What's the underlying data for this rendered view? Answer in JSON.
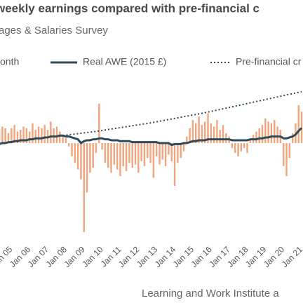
{
  "chart_data": {
    "type": "bar",
    "title": "weekly earnings compared with pre-financial c",
    "subtitle": "ages & Salaries Survey",
    "source": "Learning and Work Institute a",
    "categories": [
      null,
      null,
      null,
      "Jan 05",
      null,
      null,
      null,
      null,
      null,
      "Jan 06",
      null,
      null,
      null,
      null,
      null,
      "Jan 07",
      null,
      null,
      null,
      null,
      null,
      "Jan 08",
      null,
      null,
      null,
      null,
      null,
      "Jan 09",
      null,
      null,
      null,
      null,
      null,
      "Jan 10",
      null,
      null,
      null,
      null,
      null,
      "Jan 11",
      null,
      null,
      null,
      null,
      null,
      "Jan 12",
      null,
      null,
      null,
      null,
      null,
      "Jan 13",
      null,
      null,
      null,
      null,
      null,
      "Jan 14",
      null,
      null,
      null,
      null,
      null,
      "Jan 15",
      null,
      null,
      null,
      null,
      null,
      "Jan 16",
      null,
      null,
      null,
      null,
      null,
      "Jan 17",
      null,
      null,
      null,
      null,
      null,
      "Jan 18",
      null,
      null,
      null,
      null,
      null,
      "Jan 19",
      null,
      null,
      null,
      null,
      null,
      "Jan 20",
      null,
      null,
      null,
      null,
      null,
      "Jan 21",
      null
    ],
    "ylim": [
      -6,
      4
    ],
    "y2lim": [
      390,
      565
    ],
    "series": [
      {
        "name": "onth",
        "type": "bar",
        "color": "#f2a47c",
        "values": [
          0.8,
          1.0,
          0.9,
          0.6,
          0.9,
          1.1,
          0.7,
          0.8,
          1.0,
          0.9,
          0.7,
          1.2,
          0.8,
          1.0,
          0.9,
          1.1,
          0.8,
          1.3,
          0.9,
          1.0,
          0.7,
          0.5,
          0.3,
          -0.2,
          -0.8,
          -1.2,
          -1.6,
          -2.2,
          -5.4,
          -3.0,
          -1.8,
          -1.5,
          -0.6,
          2.4,
          -0.4,
          -1.2,
          -1.5,
          -1.8,
          -1.3,
          -1.6,
          -2.0,
          -1.4,
          -1.7,
          -1.2,
          -1.5,
          -1.3,
          -1.8,
          -1.1,
          -1.4,
          -0.9,
          -1.2,
          -2.1,
          -0.8,
          -1.3,
          -1.0,
          -1.4,
          -0.7,
          -1.1,
          -2.6,
          -1.2,
          -0.9,
          -0.5,
          0.4,
          0.9,
          1.4,
          1.2,
          1.6,
          1.1,
          1.3,
          1.8,
          1.2,
          1.0,
          1.4,
          0.8,
          1.1,
          0.6,
          0.4,
          -0.3,
          -0.6,
          -0.8,
          -0.5,
          -0.3,
          -0.6,
          0.2,
          0.5,
          0.7,
          0.9,
          1.1,
          1.5,
          1.3,
          1.2,
          1.4,
          1.0,
          0.8,
          -1.4,
          -2.0,
          -0.9,
          0.6,
          1.2,
          2.3,
          1.9
        ]
      },
      {
        "name": "Real AWE (2015 £)",
        "type": "line",
        "axis": "y2",
        "color": "#2c4a5a",
        "values": [
          494,
          495,
          495,
          496,
          496,
          497,
          497,
          498,
          498,
          498,
          499,
          499,
          500,
          500,
          500,
          501,
          501,
          502,
          502,
          502,
          503,
          503,
          502,
          502,
          501,
          500,
          499,
          495,
          497,
          498,
          498,
          499,
          499,
          500,
          500,
          499,
          499,
          498,
          498,
          498,
          497,
          497,
          497,
          497,
          496,
          496,
          496,
          496,
          496,
          496,
          496,
          496,
          496,
          495,
          495,
          495,
          495,
          493,
          494,
          494,
          494,
          495,
          495,
          496,
          497,
          497,
          498,
          498,
          498,
          499,
          499,
          499,
          499,
          499,
          499,
          499,
          499,
          498,
          498,
          498,
          498,
          498,
          498,
          499,
          499,
          499,
          500,
          500,
          501,
          501,
          502,
          502,
          502,
          502,
          500,
          500,
          501,
          502,
          504,
          508,
          511
        ]
      },
      {
        "name": "Pre-financial cr",
        "type": "line",
        "style": "dotted",
        "axis": "y2",
        "color": "#2c4a5a",
        "values": [
          null,
          null,
          null,
          null,
          null,
          null,
          null,
          null,
          null,
          null,
          null,
          null,
          null,
          null,
          null,
          null,
          null,
          null,
          null,
          null,
          null,
          503,
          503.4,
          503.8,
          504.2,
          504.6,
          505,
          505.4,
          505.8,
          506.2,
          506.6,
          507,
          507.4,
          507.9,
          508.4,
          508.9,
          509.4,
          509.9,
          510.4,
          510.9,
          511.4,
          511.9,
          512.4,
          512.9,
          513.4,
          513.9,
          514.4,
          514.9,
          515.4,
          515.9,
          516.4,
          517,
          517.6,
          518.2,
          518.8,
          519.4,
          520,
          520.6,
          521.2,
          521.8,
          522.4,
          523,
          523.6,
          524.2,
          524.8,
          525.4,
          526,
          526.6,
          527.2,
          527.9,
          528.6,
          529.3,
          530,
          530.7,
          531.4,
          532.1,
          532.8,
          533.5,
          534.2,
          534.9,
          535.6,
          536.3,
          537,
          537.7,
          538.4,
          539.1,
          539.8,
          540.5,
          541.2,
          541.9,
          542.6,
          543.3,
          544,
          544.7,
          545.4,
          546.1,
          546.8,
          547.5,
          548.2,
          548.9,
          549.6
        ]
      }
    ]
  }
}
